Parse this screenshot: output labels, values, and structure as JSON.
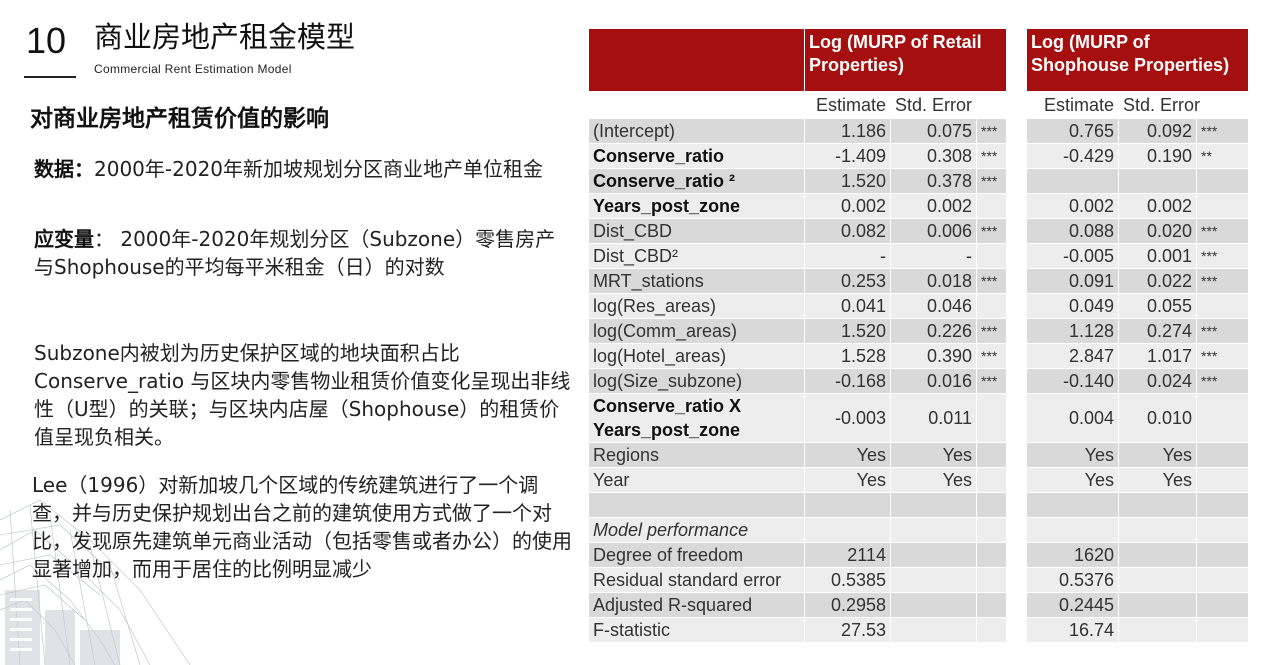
{
  "header": {
    "slide_number": "10",
    "title_cn": "商业房地产租金模型",
    "title_en": "Commercial Rent Estimation Model"
  },
  "left": {
    "heading": "对商业房地产租赁价值的影响",
    "data_label": "数据：",
    "data_text": "2000年-2020年新加坡规划分区商业地产单位租金",
    "dv_label": "应变量",
    "dv_text": "： 2000年-2020年规划分区（Subzone）零售房产与Shophouse的平均每平米租金（日）的对数",
    "para3": "Subzone内被划为历史保护区域的地块面积占比Conserve_ratio 与区块内零售物业租赁价值变化呈现出非线性（U型）的关联；与区块内店屋（Shophouse）的租赁价值呈现负相关。",
    "para4": "Lee（1996）对新加坡几个区域的传统建筑进行了一个调查，并与历史保护规划出台之前的建筑使用方式做了一个对比，发现原先建筑单元商业活动（包括零售或者办公）的使用显著增加，而用于居住的比例明显减少"
  },
  "table": {
    "col_retail": "Log (MURP of Retail Properties)",
    "col_shop": "Log (MURP of Shophouse Properties)",
    "estimate": "Estimate",
    "std_error": "Std. Error",
    "rows": [
      {
        "label": "(Intercept)",
        "bold": false,
        "e1": "1.186",
        "s1": "0.075",
        "g1": "***",
        "e2": "0.765",
        "s2": "0.092",
        "g2": "***"
      },
      {
        "label": "Conserve_ratio",
        "bold": true,
        "e1": "-1.409",
        "s1": "0.308",
        "g1": "***",
        "e2": "-0.429",
        "s2": "0.190",
        "g2": "**"
      },
      {
        "label": "Conserve_ratio ²",
        "bold": true,
        "e1": "1.520",
        "s1": "0.378",
        "g1": "***",
        "e2": "",
        "s2": "",
        "g2": ""
      },
      {
        "label": "Years_post_zone",
        "bold": true,
        "e1": "0.002",
        "s1": "0.002",
        "g1": "",
        "e2": "0.002",
        "s2": "0.002",
        "g2": ""
      },
      {
        "label": "Dist_CBD",
        "bold": false,
        "e1": "0.082",
        "s1": "0.006",
        "g1": "***",
        "e2": "0.088",
        "s2": "0.020",
        "g2": "***"
      },
      {
        "label": "Dist_CBD²",
        "bold": false,
        "e1": "-",
        "s1": "-",
        "g1": "",
        "e2": "-0.005",
        "s2": "0.001",
        "g2": "***"
      },
      {
        "label": "MRT_stations",
        "bold": false,
        "e1": "0.253",
        "s1": "0.018",
        "g1": "***",
        "e2": "0.091",
        "s2": "0.022",
        "g2": "***"
      },
      {
        "label": "log(Res_areas)",
        "bold": false,
        "e1": "0.041",
        "s1": "0.046",
        "g1": "",
        "e2": "0.049",
        "s2": "0.055",
        "g2": ""
      },
      {
        "label": "log(Comm_areas)",
        "bold": false,
        "e1": "1.520",
        "s1": "0.226",
        "g1": "***",
        "e2": "1.128",
        "s2": "0.274",
        "g2": "***"
      },
      {
        "label": "log(Hotel_areas)",
        "bold": false,
        "e1": "1.528",
        "s1": "0.390",
        "g1": "***",
        "e2": "2.847",
        "s2": "1.017",
        "g2": "***"
      },
      {
        "label": "log(Size_subzone)",
        "bold": false,
        "e1": "-0.168",
        "s1": "0.016",
        "g1": "***",
        "e2": "-0.140",
        "s2": "0.024",
        "g2": "***"
      }
    ],
    "interaction": {
      "label1": "Conserve_ratio X",
      "label2": "Years_post_zone",
      "e1": "-0.003",
      "s1": "0.011",
      "e2": "0.004",
      "s2": "0.010"
    },
    "fixed": [
      {
        "label": "Regions",
        "e1": "Yes",
        "s1": "Yes",
        "e2": "Yes",
        "s2": "Yes"
      },
      {
        "label": "Year",
        "e1": "Yes",
        "s1": "Yes",
        "e2": "Yes",
        "s2": "Yes"
      }
    ],
    "perf_title": "Model performance",
    "perf": [
      {
        "label": "Degree of freedom",
        "v1": "2114",
        "v2": "1620"
      },
      {
        "label": "Residual standard error",
        "v1": "0.5385",
        "v2": "0.5376"
      },
      {
        "label": "Adjusted R-squared",
        "v1": "0.2958",
        "v2": "0.2445"
      },
      {
        "label": "F-statistic",
        "v1": "27.53",
        "v2": "16.74"
      }
    ]
  }
}
